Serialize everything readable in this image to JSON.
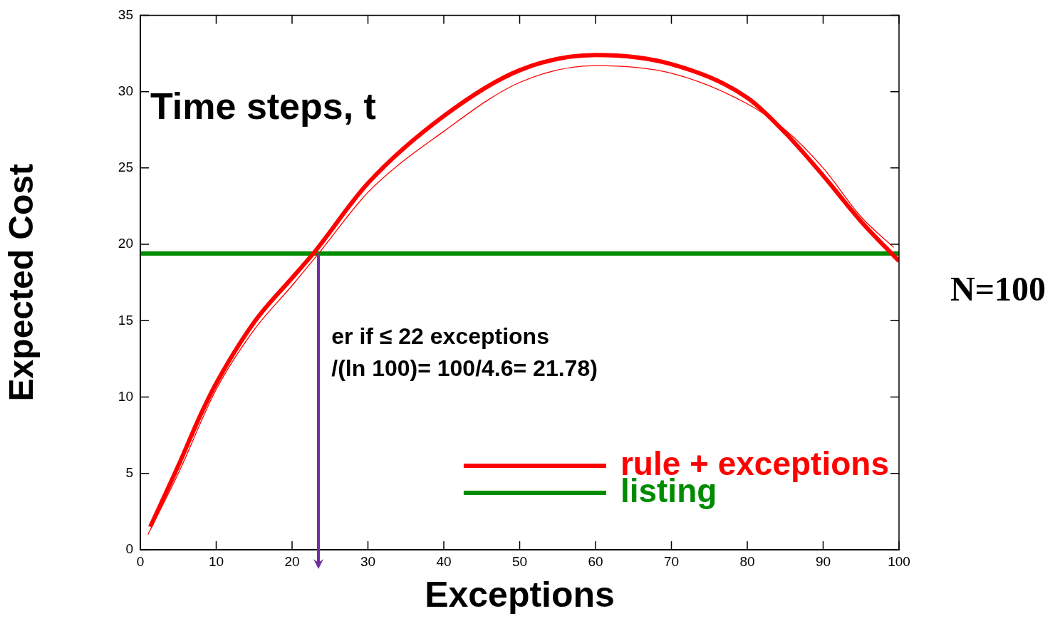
{
  "chart_data": {
    "type": "line",
    "xlabel": "Exceptions",
    "ylabel": "Expected Cost",
    "xlim": [
      0,
      100
    ],
    "ylim": [
      0,
      35
    ],
    "xticks": [
      0,
      10,
      20,
      30,
      40,
      50,
      60,
      70,
      80,
      90,
      100
    ],
    "yticks": [
      0,
      5,
      10,
      15,
      20,
      25,
      30,
      35
    ],
    "marker": "none",
    "legend": "bottom right",
    "series": [
      {
        "name": "rule + exceptions",
        "color": "#ff0000",
        "x": [
          1.3,
          5,
          8,
          10,
          15,
          20,
          22.8,
          30,
          40,
          50,
          60,
          70,
          80,
          85,
          90,
          95,
          100
        ],
        "values": [
          1.5,
          5.5,
          8.9,
          10.9,
          14.9,
          17.8,
          19.4,
          24.0,
          28.4,
          31.4,
          32.4,
          31.8,
          29.6,
          27.3,
          24.5,
          21.5,
          18.9
        ]
      },
      {
        "color": "#ff0000",
        "x": [
          1,
          5,
          10,
          15,
          20,
          23.5,
          30,
          40,
          50,
          60,
          70,
          80,
          85,
          90,
          95,
          99.3
        ],
        "values": [
          1.0,
          5.0,
          10.5,
          14.4,
          17.3,
          19.4,
          23.4,
          27.4,
          30.6,
          31.7,
          31.2,
          29.2,
          27.5,
          25.0,
          21.8,
          19.8
        ]
      },
      {
        "name": "listing",
        "color": "#008c00",
        "x": [
          0,
          100
        ],
        "values": [
          19.4,
          19.4
        ]
      }
    ],
    "ref_lines": [
      {
        "axis": "x",
        "value": 23.5,
        "color": "#7030a0"
      }
    ],
    "annotations": [
      "Time steps, t",
      "N=100",
      "er if ≤ 22 exceptions",
      "/(ln 100)= 100/4.6= 21.78)"
    ]
  }
}
